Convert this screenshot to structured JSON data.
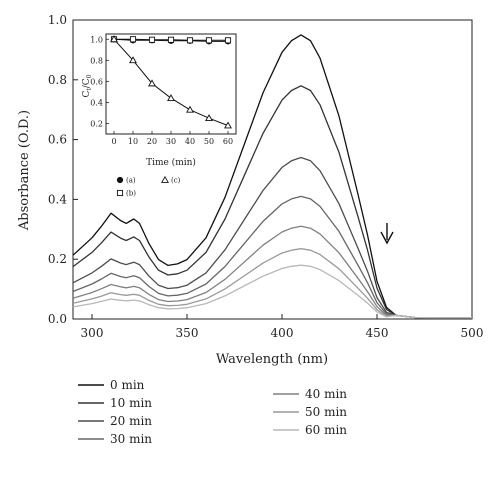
{
  "chart_data": [
    {
      "type": "line",
      "xlabel": "Wavelength (nm)",
      "ylabel": "Absorbance (O.D.)",
      "xlim": [
        290,
        500
      ],
      "ylim": [
        0.0,
        1.0
      ],
      "xticks": [
        300,
        350,
        400,
        450,
        500
      ],
      "yticks": [
        0.0,
        0.2,
        0.4,
        0.6,
        0.8,
        1.0
      ],
      "xtick_labels": [
        "300",
        "350",
        "400",
        "450",
        "500"
      ],
      "ytick_labels": [
        "0.0",
        "0.2",
        "0.4",
        "0.6",
        "0.8",
        "1.0"
      ],
      "grid": false,
      "legend_position": "bottom",
      "annotation": "arrow pointing down near 455 nm indicating decreasing absorbance with time",
      "shape_x": [
        290,
        300,
        305,
        310,
        315,
        318,
        322,
        325,
        330,
        335,
        340,
        345,
        350,
        360,
        370,
        380,
        390,
        400,
        405,
        410,
        415,
        420,
        430,
        440,
        445,
        450,
        455,
        460,
        470,
        480,
        490,
        500
      ],
      "shape_y": [
        0.22,
        0.28,
        0.32,
        0.365,
        0.34,
        0.33,
        0.345,
        0.33,
        0.26,
        0.205,
        0.185,
        0.19,
        0.205,
        0.28,
        0.42,
        0.6,
        0.78,
        0.92,
        0.96,
        0.98,
        0.96,
        0.9,
        0.7,
        0.43,
        0.29,
        0.13,
        0.04,
        0.012,
        0.005,
        0.004,
        0.004,
        0.004
      ],
      "series": [
        {
          "name": "0 min",
          "peak": 0.95,
          "color": "#111111"
        },
        {
          "name": "10 min",
          "peak": 0.78,
          "color": "#333333"
        },
        {
          "name": "20 min",
          "peak": 0.54,
          "color": "#4d4d4d"
        },
        {
          "name": "30 min",
          "peak": 0.41,
          "color": "#666666"
        },
        {
          "name": "40 min",
          "peak": 0.31,
          "color": "#808080"
        },
        {
          "name": "50 min",
          "peak": 0.235,
          "color": "#9a9a9a"
        },
        {
          "name": "60 min",
          "peak": 0.18,
          "color": "#b8b8b8"
        }
      ]
    },
    {
      "type": "line",
      "xlabel": "Time (min)",
      "ylabel": "C/C0",
      "ylabel_main": "C",
      "ylabel_main_sub": "t",
      "ylabel_den": "C",
      "ylabel_den_sub": "0",
      "xlim": [
        0,
        60
      ],
      "ylim": [
        0.1,
        1.05
      ],
      "xticks": [
        0,
        10,
        20,
        30,
        40,
        50,
        60
      ],
      "yticks": [
        0.2,
        0.4,
        0.6,
        0.8,
        1.0
      ],
      "xtick_labels": [
        "0",
        "10",
        "20",
        "30",
        "40",
        "50",
        "60"
      ],
      "ytick_labels": [
        "0.2",
        "0.4",
        "0.6",
        "0.8",
        "1.0"
      ],
      "series": [
        {
          "name": "(a)",
          "marker": "circle-filled",
          "x": [
            0,
            10,
            20,
            30,
            40,
            50,
            60
          ],
          "values": [
            1.0,
            0.99,
            0.99,
            0.985,
            0.985,
            0.98,
            0.98
          ]
        },
        {
          "name": "(b)",
          "marker": "square-open",
          "x": [
            0,
            10,
            20,
            30,
            40,
            50,
            60
          ],
          "values": [
            1.0,
            1.0,
            0.995,
            0.995,
            0.99,
            0.99,
            0.99
          ]
        },
        {
          "name": "(c)",
          "marker": "triangle-open",
          "x": [
            0,
            10,
            20,
            30,
            40,
            50,
            60
          ],
          "values": [
            1.0,
            0.8,
            0.58,
            0.44,
            0.33,
            0.25,
            0.18
          ]
        }
      ]
    }
  ]
}
